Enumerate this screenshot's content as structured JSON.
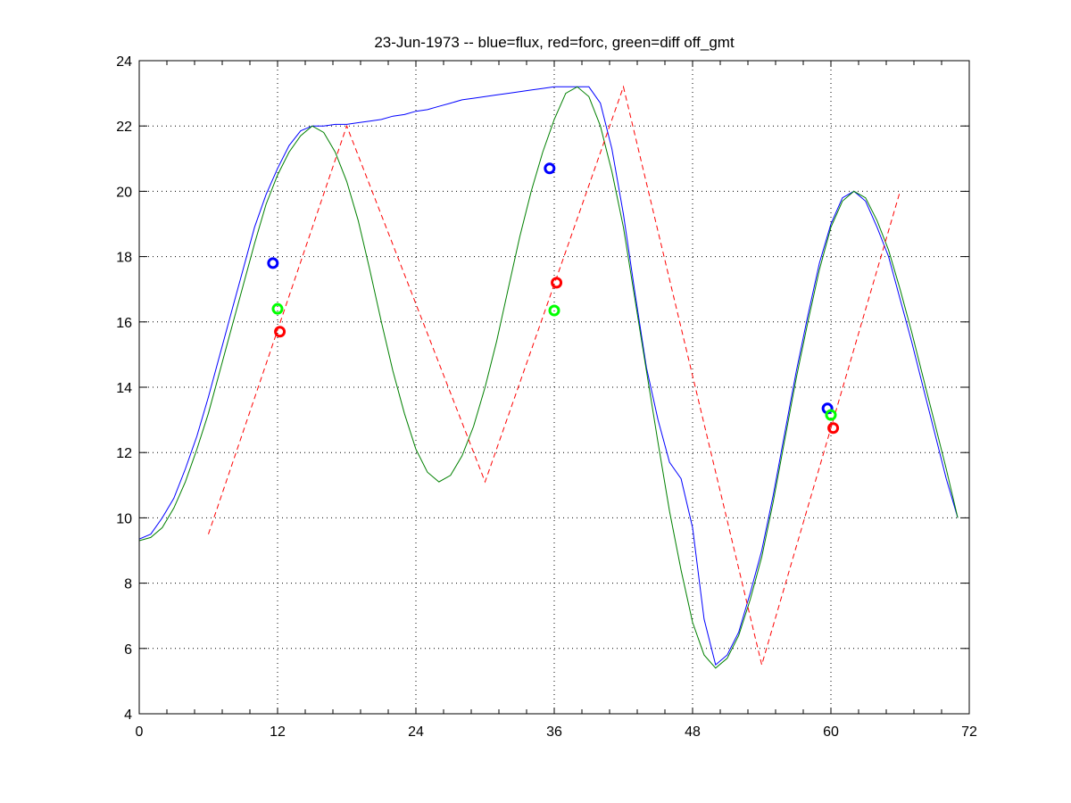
{
  "chart_data": {
    "type": "line",
    "title": "23-Jun-1973 -- blue=flux, red=forc, green=diff off_gmt",
    "xlabel": "",
    "ylabel": "",
    "xlim": [
      0,
      72
    ],
    "ylim": [
      4,
      24
    ],
    "xticks": [
      "0",
      "12",
      "24",
      "36",
      "48",
      "60",
      "72"
    ],
    "yticks": [
      "4",
      "6",
      "8",
      "10",
      "12",
      "14",
      "16",
      "18",
      "20",
      "22",
      "24"
    ],
    "x_minor_tick_step": 2.4,
    "grid": true,
    "colors": {
      "flux": "#0000ff",
      "forc": "#ff0000",
      "diff": "#008000",
      "diff_marker": "#00ff00"
    },
    "series": [
      {
        "key": "flux",
        "style": "solid",
        "color": "#0000ff",
        "x": [
          0,
          1,
          2,
          3,
          4,
          5,
          6,
          7,
          8,
          9,
          10,
          11,
          12,
          13,
          14,
          15,
          16,
          17,
          18,
          19,
          20,
          21,
          22,
          23,
          24,
          25,
          26,
          27,
          28,
          29,
          30,
          31,
          32,
          33,
          34,
          35,
          36,
          37,
          38,
          39,
          40,
          41,
          42,
          43,
          44,
          45,
          46,
          47,
          48,
          49,
          50,
          51,
          52,
          53,
          54,
          55,
          56,
          57,
          58,
          59,
          60,
          61,
          62,
          63,
          64,
          65,
          66,
          67,
          68,
          69,
          70,
          71
        ],
        "y": [
          9.35,
          9.5,
          10.0,
          10.6,
          11.5,
          12.5,
          13.7,
          15.0,
          16.3,
          17.6,
          18.9,
          19.9,
          20.7,
          21.4,
          21.85,
          22.0,
          22.0,
          22.05,
          22.05,
          22.1,
          22.15,
          22.2,
          22.3,
          22.35,
          22.45,
          22.5,
          22.6,
          22.7,
          22.8,
          22.85,
          22.9,
          22.95,
          23.0,
          23.05,
          23.1,
          23.15,
          23.2,
          23.2,
          23.2,
          23.2,
          22.7,
          21.3,
          19.3,
          16.9,
          14.6,
          13.0,
          11.7,
          11.2,
          9.7,
          6.9,
          5.5,
          5.8,
          6.5,
          7.7,
          9.0,
          10.7,
          12.6,
          14.5,
          16.2,
          17.8,
          19.0,
          19.8,
          20.0,
          19.7,
          18.9,
          18.0,
          16.7,
          15.4,
          14.0,
          12.6,
          11.2,
          10.0
        ]
      },
      {
        "key": "diff",
        "style": "solid",
        "color": "#008000",
        "x": [
          0,
          1,
          2,
          3,
          4,
          5,
          6,
          7,
          8,
          9,
          10,
          11,
          12,
          13,
          14,
          15,
          16,
          17,
          18,
          19,
          20,
          21,
          22,
          23,
          24,
          25,
          26,
          27,
          28,
          29,
          30,
          31,
          32,
          33,
          34,
          35,
          36,
          37,
          38,
          39,
          40,
          41,
          42,
          43,
          44,
          45,
          46,
          47,
          48,
          49,
          50,
          51,
          52,
          53,
          54,
          55,
          56,
          57,
          58,
          59,
          60,
          61,
          62,
          63,
          64,
          65,
          66,
          67,
          68,
          69,
          70,
          71
        ],
        "y": [
          9.3,
          9.4,
          9.7,
          10.3,
          11.1,
          12.1,
          13.2,
          14.5,
          15.8,
          17.1,
          18.4,
          19.6,
          20.5,
          21.2,
          21.7,
          22.0,
          21.8,
          21.2,
          20.3,
          19.1,
          17.6,
          16.0,
          14.5,
          13.2,
          12.1,
          11.4,
          11.1,
          11.3,
          11.9,
          12.8,
          14.0,
          15.4,
          17.0,
          18.6,
          20.0,
          21.2,
          22.2,
          23.0,
          23.2,
          22.9,
          22.0,
          20.6,
          18.9,
          16.7,
          14.5,
          12.3,
          10.2,
          8.4,
          6.8,
          5.8,
          5.4,
          5.7,
          6.4,
          7.5,
          8.8,
          10.5,
          12.4,
          14.3,
          16.0,
          17.6,
          18.9,
          19.7,
          20.0,
          19.8,
          19.1,
          18.2,
          17.0,
          15.7,
          14.3,
          12.9,
          11.5,
          10.0
        ]
      },
      {
        "key": "forc",
        "style": "dashed",
        "color": "#ff0000",
        "x": [
          6,
          18,
          30,
          42,
          54,
          66
        ],
        "y": [
          9.5,
          22.0,
          11.1,
          23.2,
          5.5,
          20.0
        ]
      }
    ],
    "markers": [
      {
        "series": "flux",
        "color": "#0000ff",
        "x": 11.6,
        "y": 17.8
      },
      {
        "series": "diff",
        "color": "#00ff00",
        "x": 12.0,
        "y": 16.4
      },
      {
        "series": "forc",
        "color": "#ff0000",
        "x": 12.2,
        "y": 15.7
      },
      {
        "series": "flux",
        "color": "#0000ff",
        "x": 35.6,
        "y": 20.7
      },
      {
        "series": "forc",
        "color": "#ff0000",
        "x": 36.2,
        "y": 17.2
      },
      {
        "series": "diff",
        "color": "#00ff00",
        "x": 36.0,
        "y": 16.35
      },
      {
        "series": "flux",
        "color": "#0000ff",
        "x": 59.7,
        "y": 13.35
      },
      {
        "series": "diff",
        "color": "#00ff00",
        "x": 60.0,
        "y": 13.15
      },
      {
        "series": "forc",
        "color": "#ff0000",
        "x": 60.2,
        "y": 12.75
      }
    ]
  }
}
